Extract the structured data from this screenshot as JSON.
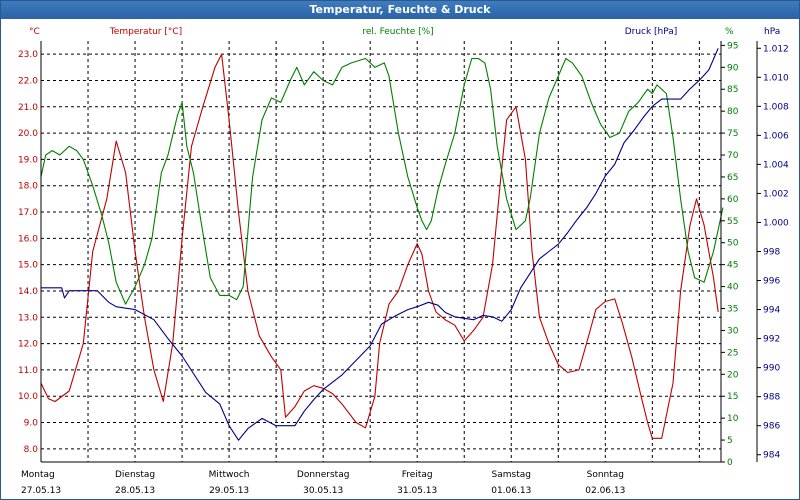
{
  "window": {
    "title": "Temperatur, Feuchte & Druck"
  },
  "colors": {
    "temperature": "#c00000",
    "humidity": "#008000",
    "pressure": "#00008b",
    "grid": "#000000",
    "background": "#ffffff",
    "title_bar": "#2a63a6"
  },
  "chart_data": {
    "type": "line",
    "title": "Temperatur, Feuchte & Druck",
    "axes": {
      "left": {
        "label": "Temperatur [°C]",
        "unit": "°C",
        "min": 7.5,
        "max": 23.5,
        "ticks": [
          8.0,
          9.0,
          10.0,
          11.0,
          12.0,
          13.0,
          14.0,
          15.0,
          16.0,
          17.0,
          18.0,
          19.0,
          20.0,
          21.0,
          22.0,
          23.0
        ],
        "tick_labels": [
          "8.0",
          "9.0",
          "10.0",
          "11.0",
          "12.0",
          "13.0",
          "14.0",
          "15.0",
          "16.0",
          "17.0",
          "18.0",
          "19.0",
          "20.0",
          "21.0",
          "22.0",
          "23.0"
        ]
      },
      "middle": {
        "label": "rel. Feuchte [%]",
        "unit": "%",
        "min": 0,
        "max": 96,
        "ticks": [
          0,
          5,
          10,
          15,
          20,
          25,
          30,
          35,
          40,
          45,
          50,
          55,
          60,
          65,
          70,
          75,
          80,
          85,
          90,
          95
        ],
        "tick_labels": [
          "0",
          "5",
          "10",
          "15",
          "20",
          "25",
          "30",
          "35",
          "40",
          "45",
          "50",
          "55",
          "60",
          "65",
          "70",
          "75",
          "80",
          "85",
          "90",
          "95"
        ]
      },
      "right": {
        "label": "Druck [hPa]",
        "unit": "hPa",
        "min": 983.5,
        "max": 1012.5,
        "ticks": [
          984,
          986,
          988,
          990,
          992,
          994,
          996,
          998,
          1000,
          1002,
          1004,
          1006,
          1008,
          1010,
          1012
        ],
        "tick_labels": [
          "984",
          "986",
          "988",
          "990",
          "992",
          "994",
          "996",
          "998",
          "1.000",
          "1.002",
          "1.004",
          "1.006",
          "1.008",
          "1.010",
          "1.012"
        ]
      }
    },
    "x": {
      "min": 0,
      "max": 7,
      "unit": "days",
      "days": [
        {
          "name": "Montag",
          "date": "27.05.13"
        },
        {
          "name": "Dienstag",
          "date": "28.05.13"
        },
        {
          "name": "Mittwoch",
          "date": "29.05.13"
        },
        {
          "name": "Donnerstag",
          "date": "30.05.13"
        },
        {
          "name": "Freitag",
          "date": "31.05.13"
        },
        {
          "name": "Samstag",
          "date": "01.06.13"
        },
        {
          "name": "Sonntag",
          "date": "02.06.13"
        }
      ]
    },
    "grid": true,
    "series": [
      {
        "name": "Temperatur [°C]",
        "axis": "left",
        "color": "#c00000",
        "points": [
          [
            0,
            10.5
          ],
          [
            0.08,
            9.9
          ],
          [
            0.15,
            9.8
          ],
          [
            0.3,
            10.2
          ],
          [
            0.45,
            12.0
          ],
          [
            0.55,
            15.5
          ],
          [
            0.7,
            17.5
          ],
          [
            0.8,
            19.7
          ],
          [
            0.9,
            18.5
          ],
          [
            1.0,
            15.5
          ],
          [
            1.1,
            13.0
          ],
          [
            1.2,
            11.0
          ],
          [
            1.3,
            9.8
          ],
          [
            1.4,
            12.0
          ],
          [
            1.5,
            16.0
          ],
          [
            1.6,
            19.5
          ],
          [
            1.72,
            21.0
          ],
          [
            1.85,
            22.5
          ],
          [
            1.92,
            23.0
          ],
          [
            2.0,
            20.5
          ],
          [
            2.1,
            17.0
          ],
          [
            2.2,
            14.0
          ],
          [
            2.32,
            12.3
          ],
          [
            2.45,
            11.5
          ],
          [
            2.55,
            11.0
          ],
          [
            2.6,
            9.2
          ],
          [
            2.7,
            9.6
          ],
          [
            2.8,
            10.2
          ],
          [
            2.9,
            10.4
          ],
          [
            3.0,
            10.3
          ],
          [
            3.1,
            10.1
          ],
          [
            3.2,
            9.7
          ],
          [
            3.35,
            9.0
          ],
          [
            3.45,
            8.8
          ],
          [
            3.55,
            10.0
          ],
          [
            3.6,
            12.0
          ],
          [
            3.7,
            13.5
          ],
          [
            3.8,
            14.0
          ],
          [
            3.9,
            15.0
          ],
          [
            4.0,
            15.8
          ],
          [
            4.05,
            15.4
          ],
          [
            4.12,
            14.0
          ],
          [
            4.2,
            13.2
          ],
          [
            4.3,
            12.9
          ],
          [
            4.4,
            12.7
          ],
          [
            4.5,
            12.1
          ],
          [
            4.6,
            12.5
          ],
          [
            4.7,
            13.0
          ],
          [
            4.8,
            15.0
          ],
          [
            4.88,
            18.0
          ],
          [
            4.95,
            20.5
          ],
          [
            5.05,
            21.0
          ],
          [
            5.15,
            19.0
          ],
          [
            5.22,
            15.5
          ],
          [
            5.3,
            13.0
          ],
          [
            5.4,
            12.0
          ],
          [
            5.5,
            11.2
          ],
          [
            5.6,
            10.9
          ],
          [
            5.72,
            11.0
          ],
          [
            5.8,
            12.0
          ],
          [
            5.9,
            13.3
          ],
          [
            6.0,
            13.6
          ],
          [
            6.1,
            13.7
          ],
          [
            6.18,
            12.8
          ],
          [
            6.28,
            11.5
          ],
          [
            6.38,
            10.0
          ],
          [
            6.45,
            9.0
          ],
          [
            6.5,
            8.4
          ],
          [
            6.6,
            8.4
          ],
          [
            6.72,
            10.5
          ],
          [
            6.8,
            14.0
          ],
          [
            6.9,
            16.5
          ],
          [
            6.97,
            17.5
          ],
          [
            7.05,
            16.5
          ],
          [
            7.15,
            14.5
          ],
          [
            7.2,
            13.2
          ]
        ]
      },
      {
        "name": "rel. Feuchte [%]",
        "axis": "middle",
        "color": "#008000",
        "points": [
          [
            0,
            65
          ],
          [
            0.05,
            70
          ],
          [
            0.12,
            71
          ],
          [
            0.2,
            70
          ],
          [
            0.3,
            72
          ],
          [
            0.38,
            71
          ],
          [
            0.45,
            69
          ],
          [
            0.55,
            63
          ],
          [
            0.65,
            56
          ],
          [
            0.72,
            50
          ],
          [
            0.8,
            41
          ],
          [
            0.9,
            36
          ],
          [
            1.0,
            40
          ],
          [
            1.1,
            45
          ],
          [
            1.18,
            51
          ],
          [
            1.28,
            66
          ],
          [
            1.35,
            70
          ],
          [
            1.45,
            79
          ],
          [
            1.5,
            82
          ],
          [
            1.55,
            72
          ],
          [
            1.62,
            66
          ],
          [
            1.7,
            55
          ],
          [
            1.8,
            42
          ],
          [
            1.9,
            38
          ],
          [
            2.0,
            38
          ],
          [
            2.08,
            37
          ],
          [
            2.15,
            40
          ],
          [
            2.25,
            65
          ],
          [
            2.35,
            78
          ],
          [
            2.45,
            83
          ],
          [
            2.55,
            82
          ],
          [
            2.65,
            87
          ],
          [
            2.72,
            90
          ],
          [
            2.8,
            86
          ],
          [
            2.9,
            89
          ],
          [
            3.0,
            87
          ],
          [
            3.1,
            86
          ],
          [
            3.2,
            90
          ],
          [
            3.3,
            91
          ],
          [
            3.45,
            92
          ],
          [
            3.55,
            90
          ],
          [
            3.65,
            91
          ],
          [
            3.7,
            88
          ],
          [
            3.8,
            75
          ],
          [
            3.9,
            65
          ],
          [
            4.0,
            58
          ],
          [
            4.05,
            55
          ],
          [
            4.1,
            53
          ],
          [
            4.15,
            55
          ],
          [
            4.22,
            62
          ],
          [
            4.3,
            68
          ],
          [
            4.4,
            75
          ],
          [
            4.5,
            86
          ],
          [
            4.58,
            92
          ],
          [
            4.65,
            92
          ],
          [
            4.72,
            91
          ],
          [
            4.78,
            85
          ],
          [
            4.85,
            72
          ],
          [
            4.95,
            60
          ],
          [
            5.05,
            53
          ],
          [
            5.15,
            55
          ],
          [
            5.2,
            60
          ],
          [
            5.3,
            75
          ],
          [
            5.4,
            83
          ],
          [
            5.5,
            88
          ],
          [
            5.58,
            92
          ],
          [
            5.65,
            91
          ],
          [
            5.75,
            88
          ],
          [
            5.85,
            82
          ],
          [
            5.95,
            77
          ],
          [
            6.05,
            74
          ],
          [
            6.15,
            75
          ],
          [
            6.25,
            80
          ],
          [
            6.35,
            82
          ],
          [
            6.45,
            85
          ],
          [
            6.5,
            84
          ],
          [
            6.55,
            86
          ],
          [
            6.65,
            84
          ],
          [
            6.72,
            74
          ],
          [
            6.8,
            60
          ],
          [
            6.88,
            48
          ],
          [
            6.95,
            42
          ],
          [
            7.05,
            41
          ],
          [
            7.15,
            48
          ],
          [
            7.25,
            58
          ]
        ]
      },
      {
        "name": "Druck [hPa]",
        "axis": "right",
        "color": "#00008b",
        "points": [
          [
            0,
            995.5
          ],
          [
            0.22,
            995.5
          ],
          [
            0.25,
            994.8
          ],
          [
            0.3,
            995.3
          ],
          [
            0.6,
            995.3
          ],
          [
            0.72,
            994.5
          ],
          [
            0.8,
            994.2
          ],
          [
            1.0,
            994.0
          ],
          [
            1.2,
            993.3
          ],
          [
            1.35,
            992.0
          ],
          [
            1.5,
            990.8
          ],
          [
            1.6,
            989.8
          ],
          [
            1.75,
            988.3
          ],
          [
            1.9,
            987.5
          ],
          [
            2.0,
            986.0
          ],
          [
            2.1,
            985.0
          ],
          [
            2.2,
            985.8
          ],
          [
            2.35,
            986.5
          ],
          [
            2.5,
            986.0
          ],
          [
            2.7,
            986.0
          ],
          [
            2.8,
            987.0
          ],
          [
            2.9,
            987.8
          ],
          [
            3.0,
            988.5
          ],
          [
            3.1,
            989.0
          ],
          [
            3.2,
            989.5
          ],
          [
            3.35,
            990.5
          ],
          [
            3.5,
            991.5
          ],
          [
            3.62,
            993.0
          ],
          [
            3.75,
            993.5
          ],
          [
            3.9,
            994.0
          ],
          [
            4.0,
            994.2
          ],
          [
            4.12,
            994.5
          ],
          [
            4.22,
            994.3
          ],
          [
            4.3,
            993.8
          ],
          [
            4.4,
            993.5
          ],
          [
            4.5,
            993.4
          ],
          [
            4.6,
            993.3
          ],
          [
            4.7,
            993.6
          ],
          [
            4.8,
            993.5
          ],
          [
            4.9,
            993.2
          ],
          [
            5.0,
            994.0
          ],
          [
            5.1,
            995.5
          ],
          [
            5.2,
            996.5
          ],
          [
            5.3,
            997.5
          ],
          [
            5.4,
            998.0
          ],
          [
            5.5,
            998.5
          ],
          [
            5.6,
            999.3
          ],
          [
            5.7,
            1000.2
          ],
          [
            5.8,
            1001.0
          ],
          [
            5.9,
            1002.0
          ],
          [
            6.0,
            1003.2
          ],
          [
            6.1,
            1004.0
          ],
          [
            6.2,
            1005.5
          ],
          [
            6.3,
            1006.3
          ],
          [
            6.4,
            1007.2
          ],
          [
            6.5,
            1008.0
          ],
          [
            6.6,
            1008.5
          ],
          [
            6.7,
            1008.5
          ],
          [
            6.8,
            1008.5
          ],
          [
            6.9,
            1009.2
          ],
          [
            7.0,
            1009.8
          ],
          [
            7.1,
            1010.5
          ],
          [
            7.2,
            1012.0
          ]
        ]
      }
    ]
  }
}
